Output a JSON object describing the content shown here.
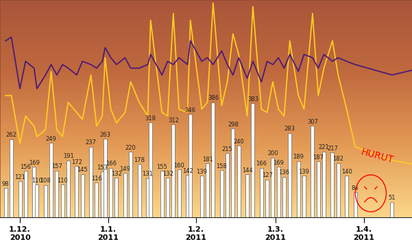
{
  "chart_data": {
    "type": "bar",
    "x": [
      -5,
      -3,
      0,
      2,
      5,
      6,
      9,
      11,
      13,
      15,
      17,
      20,
      22,
      25,
      27,
      29,
      30,
      32,
      34,
      37,
      39,
      42,
      45,
      46,
      50,
      52,
      54,
      56,
      59,
      60,
      64,
      66,
      68,
      71,
      73,
      75,
      77,
      80,
      82,
      85,
      87,
      89,
      91,
      93,
      95,
      98,
      100,
      103,
      105,
      107,
      110,
      112,
      115,
      118,
      131
    ],
    "values": [
      98,
      262,
      121,
      156,
      169,
      110,
      108,
      249,
      157,
      110,
      191,
      172,
      145,
      237,
      116,
      153,
      263,
      166,
      132,
      149,
      220,
      178,
      131,
      318,
      155,
      132,
      312,
      160,
      142,
      346,
      139,
      181,
      386,
      158,
      215,
      298,
      240,
      144,
      383,
      166,
      127,
      200,
      169,
      136,
      283,
      189,
      139,
      307,
      187,
      221,
      217,
      182,
      140,
      84,
      51
    ],
    "color": "#ffffff",
    "data_labels": true,
    "series": [
      {
        "type": "line",
        "color": "#ffcc22",
        "x": [
          -5,
          -3,
          0,
          2,
          5,
          6,
          9,
          11,
          13,
          15,
          17,
          20,
          22,
          25,
          27,
          29,
          30,
          32,
          34,
          37,
          39,
          42,
          45,
          46,
          50,
          52,
          54,
          56,
          59,
          60,
          64,
          66,
          68,
          71,
          73,
          75,
          77,
          80,
          82,
          85,
          87,
          89,
          91,
          93,
          95,
          98,
          100,
          103,
          105,
          107,
          110,
          112,
          115,
          118,
          131,
          138
        ],
        "values": [
          409,
          409,
          248,
          340,
          306,
          271,
          294,
          490,
          294,
          271,
          386,
          352,
          329,
          478,
          306,
          340,
          536,
          363,
          317,
          352,
          455,
          386,
          340,
          662,
          352,
          340,
          685,
          363,
          352,
          662,
          363,
          386,
          720,
          375,
          455,
          616,
          547,
          340,
          708,
          363,
          352,
          455,
          363,
          340,
          593,
          409,
          363,
          685,
          409,
          501,
          593,
          478,
          363,
          237,
          191,
          179
        ]
      },
      {
        "type": "line",
        "color": "#4b1a7a",
        "x": [
          -5,
          -3,
          0,
          2,
          5,
          6,
          9,
          11,
          13,
          15,
          17,
          20,
          22,
          25,
          27,
          29,
          30,
          32,
          34,
          37,
          39,
          42,
          45,
          46,
          50,
          52,
          54,
          56,
          59,
          60,
          64,
          66,
          68,
          71,
          73,
          75,
          77,
          80,
          82,
          85,
          87,
          89,
          91,
          93,
          95,
          98,
          100,
          103,
          105,
          107,
          110,
          112,
          115,
          118,
          131,
          138
        ],
        "values": [
          593,
          605,
          432,
          524,
          501,
          432,
          478,
          513,
          478,
          513,
          501,
          478,
          524,
          513,
          501,
          524,
          570,
          536,
          513,
          536,
          501,
          501,
          513,
          547,
          478,
          524,
          513,
          536,
          513,
          593,
          524,
          536,
          513,
          559,
          513,
          478,
          536,
          467,
          524,
          455,
          524,
          513,
          536,
          501,
          547,
          490,
          547,
          536,
          501,
          547,
          524,
          536,
          524,
          513,
          478,
          494
        ]
      }
    ],
    "xlim": [
      -7,
      138
    ],
    "xticks": [
      {
        "value": 0,
        "label": "1.12.\n2010"
      },
      {
        "value": 31,
        "label": "1.1.\n2011"
      },
      {
        "value": 62,
        "label": "1.2.\n2011"
      },
      {
        "value": 90,
        "label": "1.3.\n2011"
      },
      {
        "value": 121,
        "label": "1.4.\n2011"
      }
    ],
    "ylim": [
      0,
      730
    ],
    "tick_labels": "x",
    "annotation": "HURUT"
  }
}
